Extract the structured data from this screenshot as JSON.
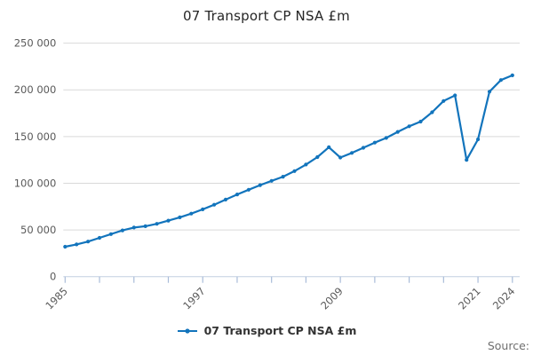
{
  "title": "07 Transport CP NSA £m",
  "legend": {
    "label": "07 Transport CP NSA £m"
  },
  "source": {
    "label": "Source:"
  },
  "colors": {
    "line": "#1274bc",
    "grid": "#d9d9d9",
    "axis": "#c3cfe0",
    "tick": "#a9bcd9",
    "tick_label": "#595959",
    "title_text": "#262626",
    "legend_text": "#333333",
    "source_text": "#6e6e6e",
    "background": "#ffffff"
  },
  "chart_data": {
    "type": "line",
    "title": "07 Transport CP NSA £m",
    "xlabel": "",
    "ylabel": "",
    "x": [
      1985,
      1986,
      1987,
      1988,
      1989,
      1990,
      1991,
      1992,
      1993,
      1994,
      1995,
      1996,
      1997,
      1998,
      1999,
      2000,
      2001,
      2002,
      2003,
      2004,
      2005,
      2006,
      2007,
      2008,
      2009,
      2010,
      2011,
      2012,
      2013,
      2014,
      2015,
      2016,
      2017,
      2018,
      2019,
      2020,
      2021,
      2022,
      2023,
      2024
    ],
    "series": [
      {
        "name": "07 Transport CP NSA £m",
        "values": [
          32000,
          34500,
          37500,
          41500,
          45500,
          49500,
          52500,
          54000,
          56500,
          60000,
          63500,
          67500,
          72000,
          77000,
          82500,
          88000,
          93000,
          98000,
          102500,
          107000,
          113000,
          120000,
          128000,
          138500,
          127500,
          132500,
          138000,
          143500,
          148500,
          155000,
          161000,
          166000,
          176000,
          188000,
          194000,
          125000,
          147000,
          198000,
          210500,
          215500
        ]
      }
    ],
    "ylim": [
      0,
      250000
    ],
    "yticks": [
      0,
      50000,
      100000,
      150000,
      200000,
      250000
    ],
    "ytick_labels": [
      "0",
      "50 000",
      "100 000",
      "150 000",
      "200 000",
      "250 000"
    ],
    "xtick_step_years": 3,
    "xtick_labeled": [
      1985,
      1997,
      2009,
      2021,
      2024
    ],
    "grid": "horizontal",
    "legend_position": "bottom",
    "marker": "dot"
  }
}
